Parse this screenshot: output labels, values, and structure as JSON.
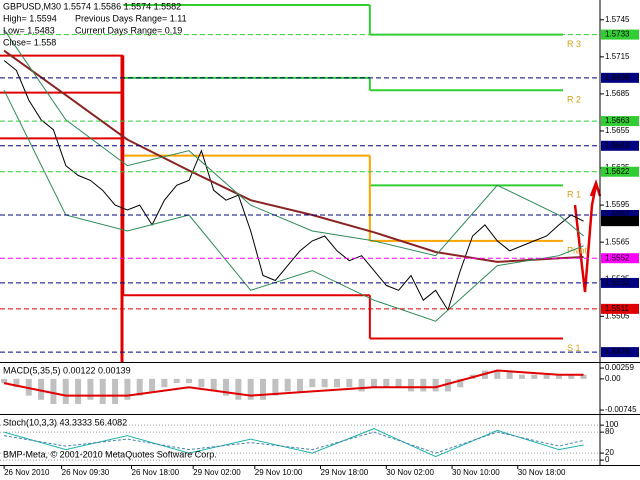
{
  "chart_data": [
    {
      "type": "line",
      "title": "GBPUSD,M30  1.5574 1.5586 1.5574 1.5582",
      "annotations": [
        "High= 1.5594",
        "Previous Days Range= 1.11",
        "Low= 1.5483",
        "Current Days Range= 0.19",
        "Close= 1.558"
      ],
      "xlim": [
        -1,
        145
      ],
      "ylim": [
        1.5468,
        1.5761
      ],
      "yticks": [
        1.5745,
        1.5715,
        1.5685,
        1.5655,
        1.5625,
        1.5595,
        1.5565,
        1.5535,
        1.5505
      ],
      "series": [
        {
          "color": "#000000",
          "width": 1,
          "x": [
            0,
            3,
            6,
            9,
            12,
            15,
            18,
            21,
            24,
            27,
            30,
            33,
            36,
            39,
            42,
            45,
            48,
            51,
            54,
            57,
            60,
            63,
            66,
            69,
            72,
            75,
            78,
            81,
            84,
            87,
            90,
            93,
            96,
            99,
            102,
            105,
            108,
            111,
            114,
            117,
            120,
            123,
            126,
            129,
            132,
            135,
            138,
            141
          ],
          "values": [
            1.5712,
            1.5704,
            1.568,
            1.5664,
            1.5656,
            1.5627,
            1.5619,
            1.5615,
            1.5607,
            1.5595,
            1.5591,
            1.5595,
            1.5579,
            1.5599,
            1.5611,
            1.5615,
            1.5639,
            1.5607,
            1.5599,
            1.5603,
            1.5574,
            1.5538,
            1.5534,
            1.5546,
            1.5558,
            1.5566,
            1.557,
            1.5558,
            1.555,
            1.5554,
            1.5542,
            1.553,
            1.5526,
            1.5538,
            1.5518,
            1.5526,
            1.551,
            1.5542,
            1.557,
            1.5579,
            1.5566,
            1.5558,
            1.5562,
            1.5566,
            1.557,
            1.5579,
            1.5587,
            1.5582
          ]
        },
        {
          "color": "#8b2323",
          "width": 2,
          "x": [
            0,
            15,
            30,
            45,
            60,
            75,
            90,
            105,
            120,
            135,
            141
          ],
          "values": [
            1.572,
            1.5684,
            1.5648,
            1.5623,
            1.5599,
            1.5587,
            1.5573,
            1.5557,
            1.5549,
            1.5552,
            1.5553
          ]
        },
        {
          "color": "#2e8b57",
          "width": 1,
          "x": [
            0,
            15,
            30,
            45,
            60,
            75,
            90,
            105,
            120,
            135,
            141
          ],
          "values": [
            1.5737,
            1.5664,
            1.5627,
            1.5639,
            1.5595,
            1.5574,
            1.5566,
            1.5554,
            1.5611,
            1.5587,
            1.557
          ]
        },
        {
          "color": "#2e8b57",
          "width": 1,
          "x": [
            0,
            15,
            30,
            45,
            60,
            75,
            90,
            105,
            120,
            135,
            141
          ],
          "values": [
            1.5688,
            1.5587,
            1.5574,
            1.5587,
            1.5526,
            1.5542,
            1.5518,
            1.5501,
            1.5546,
            1.5554,
            1.5562
          ]
        }
      ],
      "pivot_bounds": [
        -1,
        29,
        89,
        136
      ],
      "pivots": [
        {
          "name": "R 3",
          "color": "#32cd32",
          "values": [
            null,
            1.5757,
            1.5733
          ]
        },
        {
          "name": "R 2",
          "color": "#32cd32",
          "values": [
            null,
            1.5698,
            1.5688
          ]
        },
        {
          "name": "R 1",
          "color": "#32cd32",
          "values": [
            null,
            null,
            1.5611
          ]
        },
        {
          "name": "Pivot",
          "color": "#ffa500",
          "values": [
            null,
            1.5635,
            1.5566
          ]
        },
        {
          "name": "S 1",
          "color": "#e00000",
          "values": [
            1.5716,
            1.5522,
            1.5487
          ]
        },
        {
          "color": "#e00000",
          "values": [
            1.5686,
            null,
            null
          ]
        },
        {
          "color": "#e00000",
          "values": [
            1.5649,
            null,
            null
          ]
        }
      ],
      "levels": [
        {
          "value": 1.5733,
          "color": "#32cd32",
          "text_color": "#000000"
        },
        {
          "value": 1.5698,
          "color": "#000080",
          "text_color": "#ffffff"
        },
        {
          "value": 1.5663,
          "color": "#32cd32",
          "text_color": "#000000"
        },
        {
          "value": 1.5643,
          "color": "#000080",
          "text_color": "#ffffff"
        },
        {
          "value": 1.5622,
          "color": "#32cd32",
          "text_color": "#000000"
        },
        {
          "value": 1.5587,
          "color": "#000080",
          "text_color": "#ffffff"
        },
        {
          "value": 1.5552,
          "color": "#ff00ff",
          "text_color": "#ffffff"
        },
        {
          "value": 1.5532,
          "color": "#000080",
          "text_color": "#ffffff"
        },
        {
          "value": 1.5511,
          "color": "#e00000",
          "text_color": "#ffffff"
        },
        {
          "value": 1.5476,
          "color": "#000080",
          "text_color": "#ffffff"
        }
      ],
      "last": 1.5582
    },
    {
      "type": "bar",
      "title": "MACD(5,35,5) 0.00122 0.00139",
      "xlim": [
        -1,
        145
      ],
      "ylim": [
        -0.0084,
        0.0038
      ],
      "yticks": [
        0.00259,
        {
          "value": 0,
          "label": "0.00"
        },
        -0.00745
      ],
      "series": [
        {
          "type": "bar",
          "color": "#c0c0c0",
          "x": [
            0,
            3,
            6,
            9,
            12,
            15,
            18,
            21,
            24,
            27,
            30,
            33,
            36,
            39,
            42,
            45,
            48,
            51,
            54,
            57,
            60,
            63,
            66,
            69,
            72,
            75,
            78,
            81,
            84,
            87,
            90,
            93,
            96,
            99,
            102,
            105,
            108,
            111,
            114,
            117,
            120,
            123,
            126,
            129,
            132,
            135,
            138,
            141
          ],
          "values": [
            -0.001,
            -0.002,
            -0.004,
            -0.005,
            -0.006,
            -0.006,
            -0.006,
            -0.005,
            -0.006,
            -0.006,
            -0.005,
            -0.004,
            -0.003,
            -0.002,
            -0.001,
            -0.001,
            -0.002,
            -0.003,
            -0.004,
            -0.005,
            -0.005,
            -0.005,
            -0.004,
            -0.003,
            -0.003,
            -0.002,
            -0.002,
            -0.002,
            -0.002,
            -0.003,
            -0.002,
            -0.002,
            -0.002,
            -0.003,
            -0.003,
            -0.003,
            -0.003,
            -0.002,
            0.001,
            0.002,
            0.002,
            0.002,
            0.001,
            0.001,
            0.001,
            0.001,
            0.001,
            0.001
          ]
        },
        {
          "type": "line",
          "color": "#e00000",
          "width": 2,
          "x": [
            0,
            15,
            30,
            45,
            60,
            75,
            90,
            105,
            120,
            135,
            141
          ],
          "values": [
            -0.001,
            -0.004,
            -0.004,
            -0.002,
            -0.004,
            -0.003,
            -0.002,
            -0.002,
            0.002,
            0.001,
            0.001
          ]
        }
      ]
    },
    {
      "type": "line",
      "title": "Stoch(10,3,3) 43.3333 56.4082",
      "annotations": [
        "BMP-Meta, © 2001-2010 MetaQuotes Software Corp."
      ],
      "xlim": [
        -1,
        145
      ],
      "ylim": [
        -14,
        129
      ],
      "yticks": [
        100,
        80,
        20,
        0
      ],
      "grid": true,
      "xticks": [
        {
          "value": 0,
          "label": "26 Nov 2010"
        },
        {
          "value": 14,
          "label": "26 Nov 09:30"
        },
        {
          "value": 31,
          "label": "26 Nov 18:00"
        },
        {
          "value": 46,
          "label": "29 Nov 02:00"
        },
        {
          "value": 61,
          "label": "29 Nov 10:00"
        },
        {
          "value": 77,
          "label": "29 Nov 18:00"
        },
        {
          "value": 93,
          "label": "30 Nov 02:00"
        },
        {
          "value": 109,
          "label": "30 Nov 10:00"
        },
        {
          "value": 125,
          "label": "30 Nov 18:00"
        }
      ],
      "series": [
        {
          "color": "#20b2aa",
          "width": 1,
          "x": [
            0,
            15,
            30,
            45,
            60,
            75,
            90,
            105,
            120,
            135,
            141
          ],
          "values": [
            80,
            30,
            70,
            20,
            60,
            20,
            90,
            10,
            85,
            30,
            43.3333
          ]
        },
        {
          "color": "#4682b4",
          "width": 1,
          "dash": true,
          "x": [
            0,
            15,
            30,
            45,
            60,
            75,
            90,
            105,
            120,
            135,
            141
          ],
          "values": [
            70,
            40,
            60,
            30,
            50,
            30,
            80,
            20,
            80,
            40,
            56.4082
          ]
        }
      ]
    }
  ]
}
